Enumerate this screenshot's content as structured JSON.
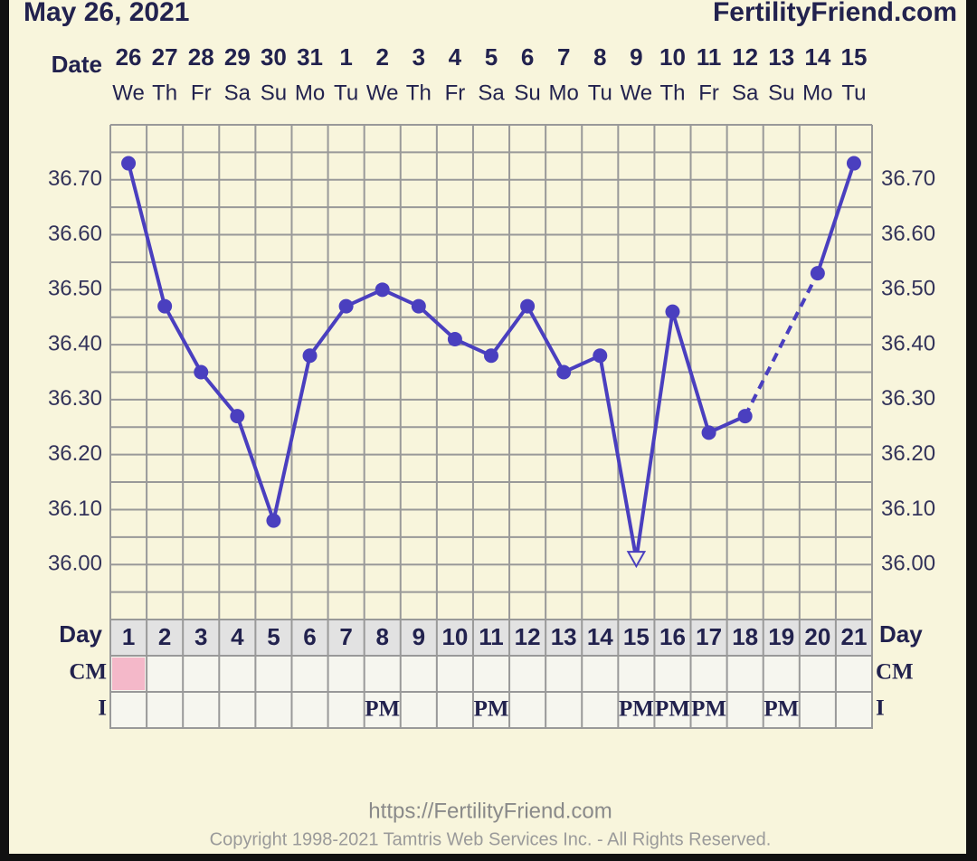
{
  "chart_data": {
    "type": "line",
    "title": "May 26, 2021",
    "brand": "FertilityFriend.com",
    "date_label": "Date",
    "day_label": "Day",
    "cm_label": "CM",
    "i_label": "I",
    "dates": [
      "26",
      "27",
      "28",
      "29",
      "30",
      "31",
      "1",
      "2",
      "3",
      "4",
      "5",
      "6",
      "7",
      "8",
      "9",
      "10",
      "11",
      "12",
      "13",
      "14",
      "15"
    ],
    "weekdays": [
      "We",
      "Th",
      "Fr",
      "Sa",
      "Su",
      "Mo",
      "Tu",
      "We",
      "Th",
      "Fr",
      "Sa",
      "Su",
      "Mo",
      "Tu",
      "We",
      "Th",
      "Fr",
      "Sa",
      "Su",
      "Mo",
      "Tu"
    ],
    "categories": [
      "1",
      "2",
      "3",
      "4",
      "5",
      "6",
      "7",
      "8",
      "9",
      "10",
      "11",
      "12",
      "13",
      "14",
      "15",
      "16",
      "17",
      "18",
      "19",
      "20",
      "21"
    ],
    "values": [
      36.73,
      36.47,
      36.35,
      36.27,
      36.08,
      36.38,
      36.47,
      36.5,
      36.47,
      36.41,
      36.38,
      36.47,
      36.35,
      36.38,
      36.01,
      36.46,
      36.24,
      36.27,
      null,
      36.53,
      36.73
    ],
    "marker_styles": [
      "circle",
      "circle",
      "circle",
      "circle",
      "circle",
      "circle",
      "circle",
      "circle",
      "circle",
      "circle",
      "circle",
      "circle",
      "circle",
      "circle",
      "open-triangle",
      "circle",
      "circle",
      "circle",
      null,
      "circle",
      "circle"
    ],
    "color": "#4a3fbf",
    "cm_colors": [
      "#f4b8c9",
      null,
      null,
      null,
      null,
      null,
      null,
      null,
      null,
      null,
      null,
      null,
      null,
      null,
      null,
      null,
      null,
      null,
      null,
      null,
      null
    ],
    "i_marks": [
      null,
      null,
      null,
      null,
      null,
      null,
      null,
      "PM",
      null,
      null,
      "PM",
      null,
      null,
      null,
      "PM",
      "PM",
      "PM",
      null,
      "PM",
      null,
      null
    ],
    "ylim": [
      35.9,
      36.8
    ],
    "yticks": [
      {
        "value": 36.0,
        "label": "36.00"
      },
      {
        "value": 36.1,
        "label": "36.10"
      },
      {
        "value": 36.2,
        "label": "36.20"
      },
      {
        "value": 36.3,
        "label": "36.30"
      },
      {
        "value": 36.4,
        "label": "36.40"
      },
      {
        "value": 36.5,
        "label": "36.50"
      },
      {
        "value": 36.6,
        "label": "36.60"
      },
      {
        "value": 36.7,
        "label": "36.70"
      }
    ],
    "grid": true,
    "url": "https://FertilityFriend.com",
    "copyright": "Copyright 1998-2021 Tamtris Web Services Inc. - All Rights Reserved."
  }
}
